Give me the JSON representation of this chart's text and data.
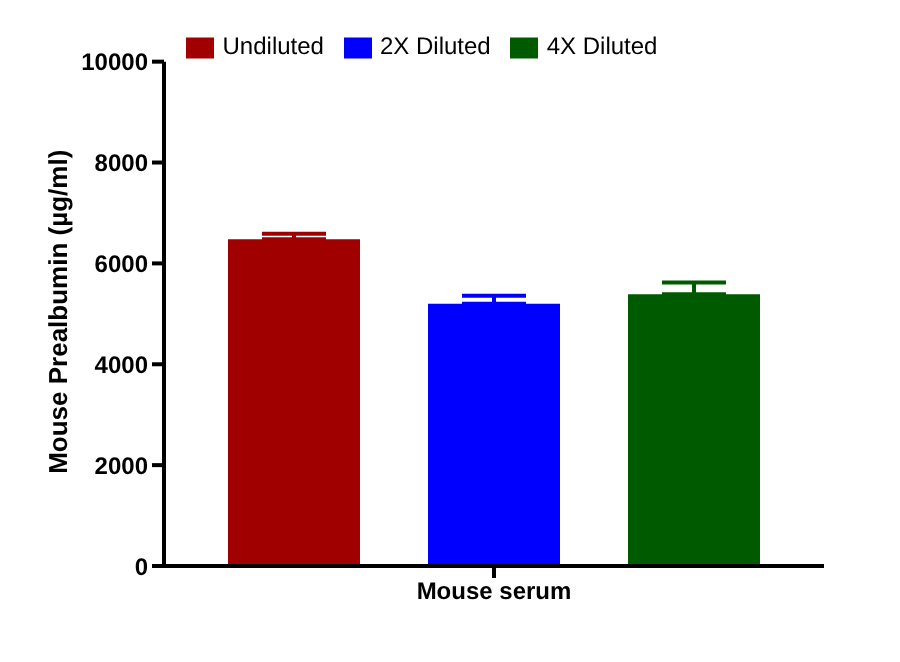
{
  "chart_data": {
    "type": "bar",
    "ylabel": "Mouse Prealbumin (µg/ml)",
    "categories": [
      "Mouse serum"
    ],
    "series": [
      {
        "name": "Undiluted",
        "color": "#a00000",
        "values": [
          6480
        ],
        "errors": [
          [
            6480,
            6590
          ]
        ]
      },
      {
        "name": "2X Diluted",
        "color": "#0000ff",
        "values": [
          5200
        ],
        "errors": [
          [
            5200,
            5360
          ]
        ]
      },
      {
        "name": "4X Diluted",
        "color": "#005a00",
        "values": [
          5390
        ],
        "errors": [
          [
            5390,
            5620
          ]
        ]
      }
    ],
    "ylim": [
      0,
      10000
    ],
    "yticks": [
      0,
      2000,
      4000,
      6000,
      8000,
      10000
    ],
    "grid": false,
    "legend": "top"
  }
}
